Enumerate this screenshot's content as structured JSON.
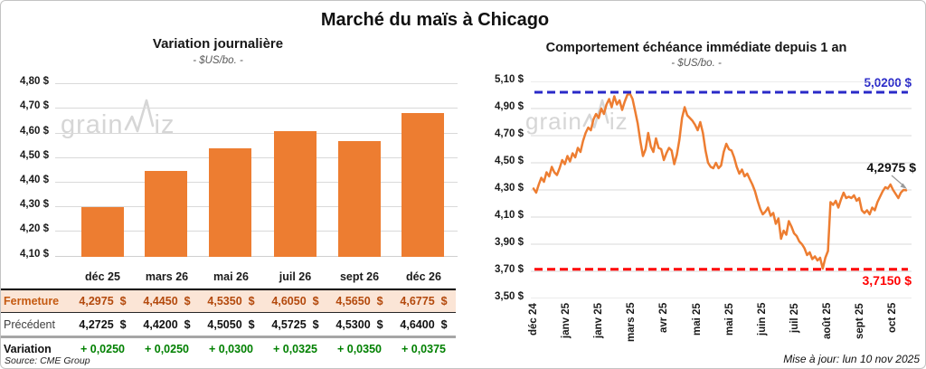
{
  "page": {
    "title": "Marché du maïs à Chicago",
    "source": "Source: CME Group",
    "updated": "Mise à jour: lun 10 nov 2025",
    "watermark": {
      "pre": "grain",
      "post": "iz"
    }
  },
  "colors": {
    "bar_orange": "#ED7D31",
    "line_orange": "#ED7D31",
    "high_blue": "#2A2AC8",
    "low_red": "#FF0000",
    "variation_green": "#008000",
    "fermeture_bg": "#FBE5D6",
    "fermeture_text": "#B3490C",
    "gridline": "#D9D9D9",
    "watermark": "#D6D6D6"
  },
  "chart_data": [
    {
      "type": "bar",
      "title": "Variation journalière",
      "subtitle": "- $US/bo. -",
      "categories": [
        "déc 25",
        "mars 26",
        "mai 26",
        "juil 26",
        "sept 26",
        "déc 26"
      ],
      "values": [
        4.2975,
        4.445,
        4.535,
        4.605,
        4.565,
        4.6775
      ],
      "y_tick_labels": [
        "4,80 $",
        "4,70 $",
        "4,60 $",
        "4,50 $",
        "4,40 $",
        "4,30 $",
        "4,20 $",
        "4,10 $"
      ],
      "y_tick_values": [
        4.8,
        4.7,
        4.6,
        4.5,
        4.4,
        4.3,
        4.2,
        4.1
      ],
      "ylim": [
        4.095,
        4.8
      ],
      "grid": true,
      "legend": false
    },
    {
      "type": "line",
      "title": "Comportement échéance immédiate depuis 1 an",
      "subtitle": "- $US/bo. -",
      "x_labels": [
        "déc 24",
        "janv 25",
        "janv 25",
        "mars 25",
        "avr 25",
        "mai 25",
        "mai 25",
        "juin 25",
        "juil 25",
        "août 25",
        "sept 25",
        "oct 25"
      ],
      "y_tick_labels": [
        "5,10 $",
        "4,90 $",
        "4,70 $",
        "4,50 $",
        "4,30 $",
        "4,10 $",
        "3,90 $",
        "3,70 $",
        "3,50 $"
      ],
      "y_tick_values": [
        5.1,
        4.9,
        4.7,
        4.5,
        4.3,
        4.1,
        3.9,
        3.7,
        3.5
      ],
      "ylim": [
        3.5,
        5.1
      ],
      "grid": true,
      "high_line": {
        "value": 5.02,
        "label": "5,0200 $"
      },
      "low_line": {
        "value": 3.715,
        "label": "3,7150 $"
      },
      "last_value": 4.2975,
      "last_label": "4,2975 $",
      "points": [
        4.31,
        4.28,
        4.34,
        4.39,
        4.36,
        4.43,
        4.4,
        4.47,
        4.43,
        4.41,
        4.46,
        4.52,
        4.49,
        4.55,
        4.51,
        4.57,
        4.54,
        4.61,
        4.58,
        4.66,
        4.72,
        4.76,
        4.74,
        4.82,
        4.86,
        4.83,
        4.9,
        4.86,
        4.93,
        4.97,
        4.91,
        4.99,
        4.93,
        4.96,
        4.89,
        4.95,
        5.0,
        5.01,
        4.97,
        4.88,
        4.79,
        4.66,
        4.55,
        4.6,
        4.72,
        4.62,
        4.58,
        4.68,
        4.61,
        4.6,
        4.52,
        4.57,
        4.61,
        4.59,
        4.49,
        4.56,
        4.67,
        4.83,
        4.91,
        4.85,
        4.83,
        4.81,
        4.78,
        4.74,
        4.8,
        4.72,
        4.59,
        4.5,
        4.47,
        4.46,
        4.5,
        4.46,
        4.48,
        4.58,
        4.64,
        4.6,
        4.59,
        4.54,
        4.47,
        4.42,
        4.45,
        4.4,
        4.42,
        4.38,
        4.34,
        4.29,
        4.22,
        4.16,
        4.12,
        4.14,
        4.17,
        4.11,
        4.13,
        4.05,
        4.09,
        3.94,
        4.0,
        3.97,
        4.07,
        4.03,
        3.98,
        3.96,
        3.92,
        3.9,
        3.87,
        3.82,
        3.84,
        3.79,
        3.81,
        3.78,
        3.8,
        3.72,
        3.8,
        3.85,
        4.21,
        4.19,
        4.22,
        4.17,
        4.23,
        4.28,
        4.24,
        4.25,
        4.24,
        4.26,
        4.22,
        4.24,
        4.15,
        4.13,
        4.15,
        4.12,
        4.17,
        4.15,
        4.21,
        4.25,
        4.29,
        4.32,
        4.31,
        4.34,
        4.3,
        4.27,
        4.24,
        4.28,
        4.3,
        4.2975
      ]
    }
  ],
  "table": {
    "columns": [
      "déc 25",
      "mars 26",
      "mai 26",
      "juil 26",
      "sept 26",
      "déc 26"
    ],
    "rows": [
      {
        "name": "fermeture",
        "label": "Fermeture",
        "values": [
          "4,2975  $",
          "4,4450  $",
          "4,5350  $",
          "4,6050  $",
          "4,5650  $",
          "4,6775  $"
        ]
      },
      {
        "name": "precedent",
        "label": "Précédent",
        "values": [
          "4,2725  $",
          "4,4200  $",
          "4,5050  $",
          "4,5725  $",
          "4,5300  $",
          "4,6400  $"
        ]
      },
      {
        "name": "variation",
        "label": "Variation",
        "values": [
          "+ 0,0250",
          "+ 0,0250",
          "+ 0,0300",
          "+ 0,0325",
          "+ 0,0350",
          "+ 0,0375"
        ]
      }
    ]
  }
}
